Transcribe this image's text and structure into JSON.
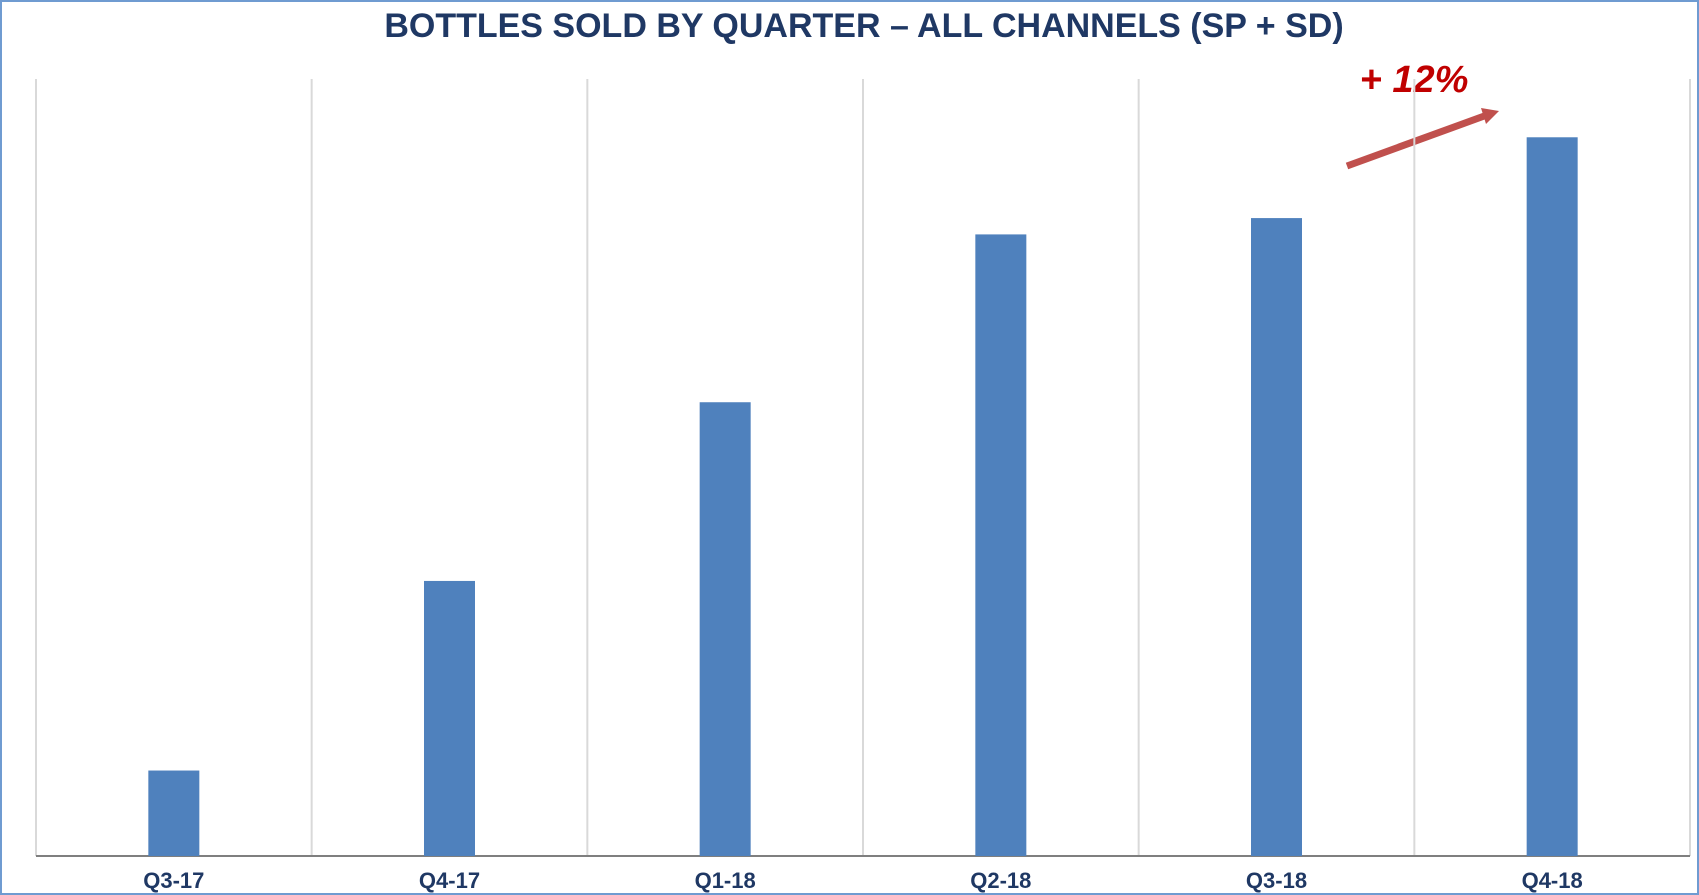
{
  "chart_data": {
    "type": "bar",
    "title": "BOTTLES SOLD BY QUARTER – ALL CHANNELS (SP + SD)",
    "annotation": "+ 12%",
    "categories": [
      "Q3-17",
      "Q4-17",
      "Q1-18",
      "Q2-18",
      "Q3-18",
      "Q4-18"
    ],
    "values": [
      11,
      35.4,
      58.4,
      80,
      82.1,
      92.5
    ],
    "color": "#4f81bd",
    "ylim": [
      0,
      100
    ],
    "grid": true
  }
}
